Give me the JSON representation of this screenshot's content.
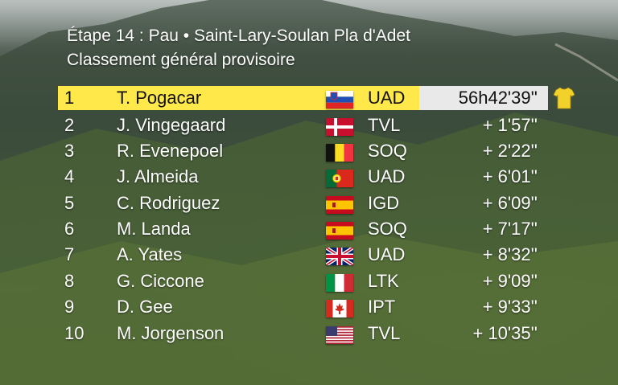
{
  "header": {
    "title": "Étape 14 : Pau • Saint-Lary-Soulan Pla d'Adet",
    "subtitle": "Classement général provisoire"
  },
  "standings": [
    {
      "rank": "1",
      "name": "T. Pogacar",
      "country": "Slovenia",
      "team": "UAD",
      "time": "56h42'39''"
    },
    {
      "rank": "2",
      "name": "J. Vingegaard",
      "country": "Denmark",
      "team": "TVL",
      "time": "+ 1'57''"
    },
    {
      "rank": "3",
      "name": "R. Evenepoel",
      "country": "Belgium",
      "team": "SOQ",
      "time": "+ 2'22''"
    },
    {
      "rank": "4",
      "name": "J. Almeida",
      "country": "Portugal",
      "team": "UAD",
      "time": "+ 6'01''"
    },
    {
      "rank": "5",
      "name": "C. Rodriguez",
      "country": "Spain",
      "team": "IGD",
      "time": "+ 6'09''"
    },
    {
      "rank": "6",
      "name": "M. Landa",
      "country": "Spain",
      "team": "SOQ",
      "time": "+ 7'17''"
    },
    {
      "rank": "7",
      "name": "A. Yates",
      "country": "United Kingdom",
      "team": "UAD",
      "time": "+ 8'32''"
    },
    {
      "rank": "8",
      "name": "G. Ciccone",
      "country": "Italy",
      "team": "LTK",
      "time": "+ 9'09''"
    },
    {
      "rank": "9",
      "name": "D. Gee",
      "country": "Canada",
      "team": "IPT",
      "time": "+ 9'33''"
    },
    {
      "rank": "10",
      "name": "M. Jorgenson",
      "country": "United States",
      "team": "TVL",
      "time": "+ 10'35''"
    }
  ],
  "icons": {
    "leader_jersey": "yellow-jersey-icon"
  },
  "colors": {
    "leader_highlight": "#ffe84a",
    "leader_time_bg": "#e9e9e9",
    "text": "#ffffff"
  }
}
